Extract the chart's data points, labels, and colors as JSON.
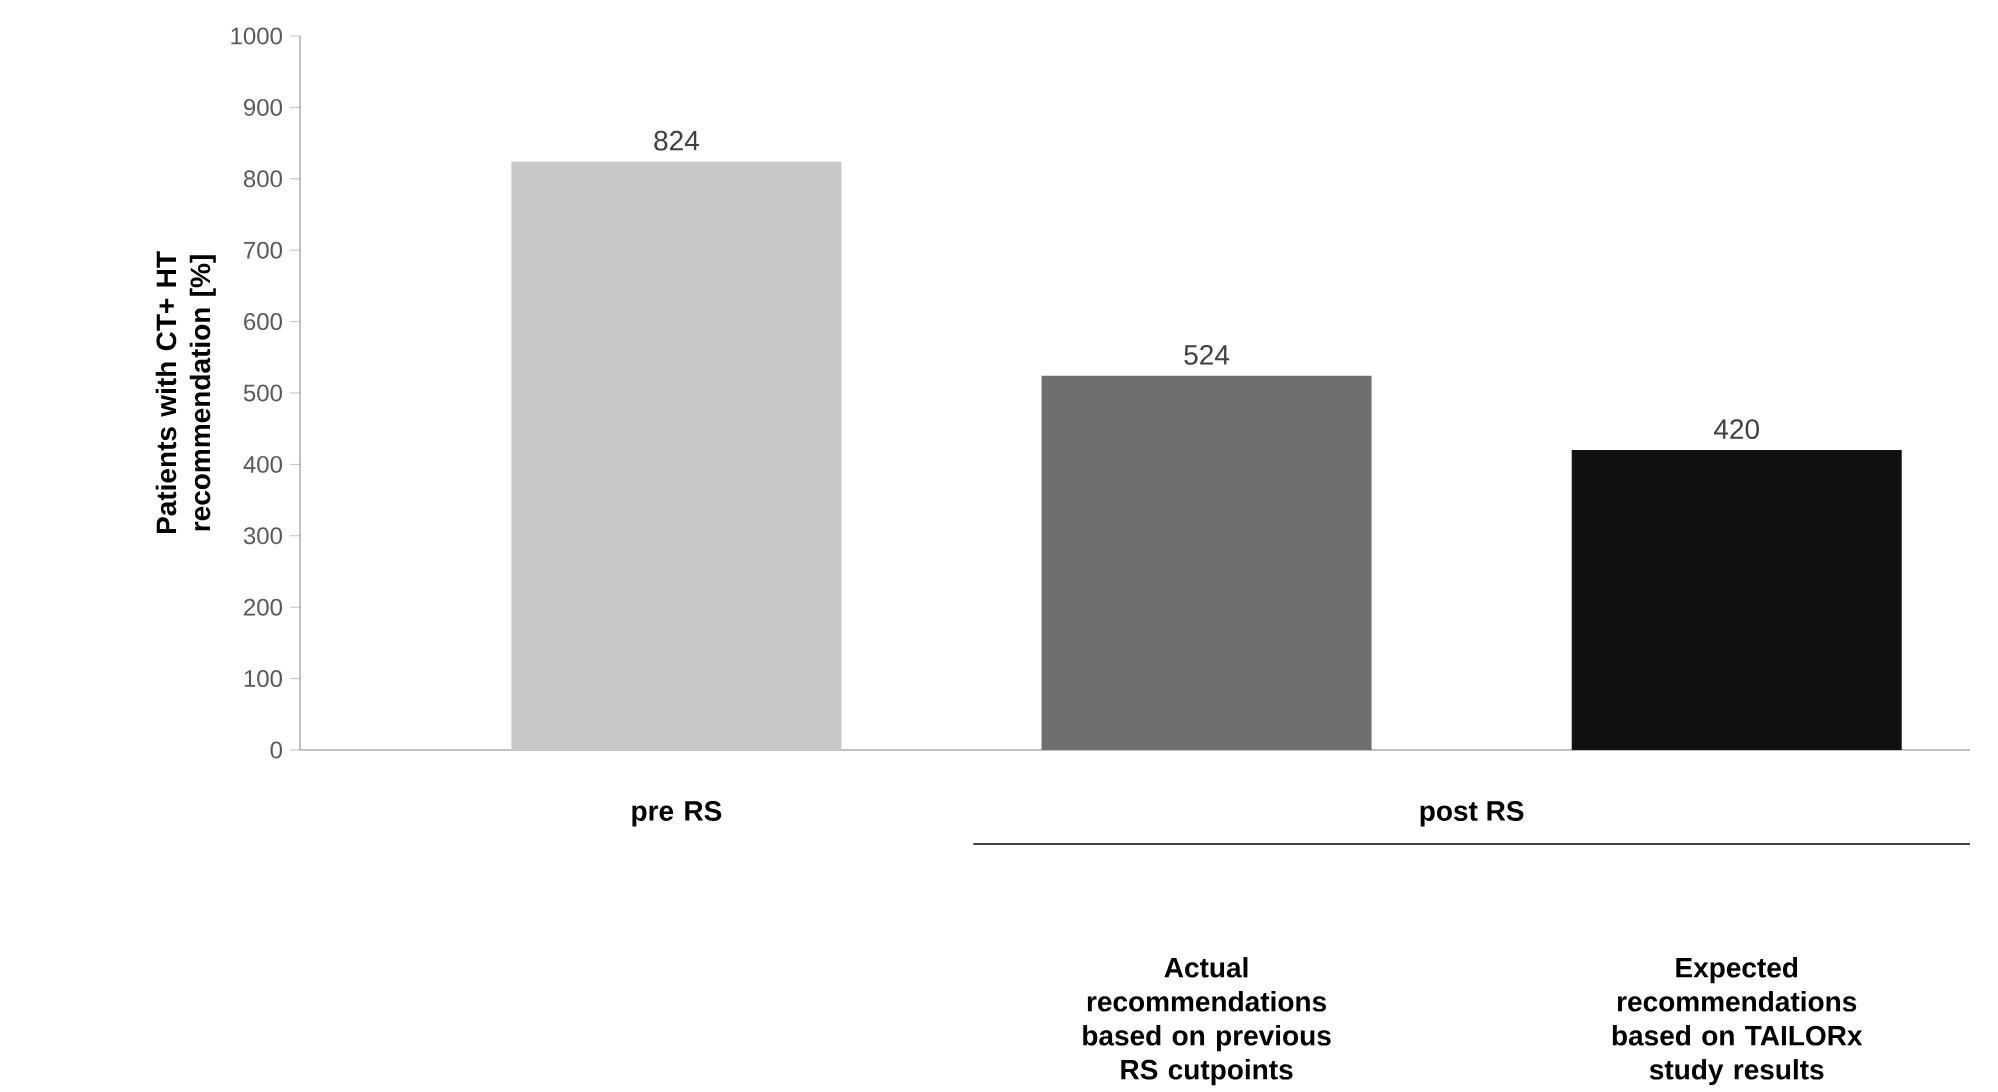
{
  "chart_data": {
    "type": "bar",
    "ylabel": "Patients with CT+ HT recommendation [%]",
    "categories": [
      "pre RS",
      "Actual recommendations based on previous RS cutpoints",
      "Expected recommendations based on TAILORx study results"
    ],
    "values": [
      824,
      524,
      420
    ],
    "colors": [
      "#c8c8c8",
      "#6f6f6f",
      "#111111"
    ],
    "ylim": [
      0,
      1000
    ],
    "yticks": [
      0,
      100,
      200,
      300,
      400,
      500,
      600,
      700,
      800,
      900,
      1000
    ],
    "data_labels": true,
    "grid": false,
    "annotations": [
      "post RS"
    ]
  }
}
